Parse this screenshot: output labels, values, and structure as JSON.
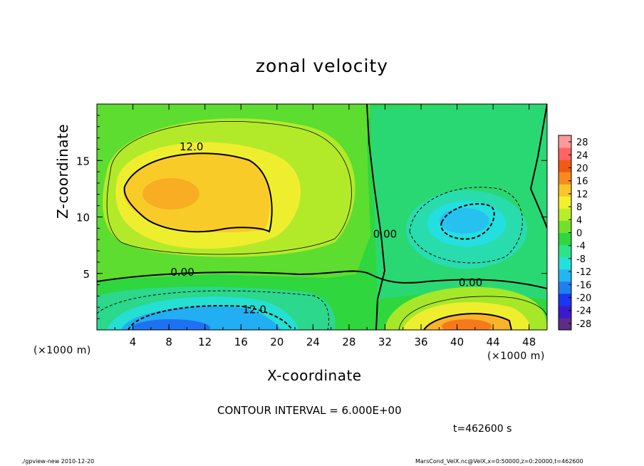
{
  "chart_data": {
    "type": "heatmap",
    "title": "zonal velocity",
    "xlabel": "X-coordinate",
    "ylabel": "Z-coordinate",
    "x_unit": "(×1000 m)",
    "y_unit": "(×1000 m)",
    "xlim": [
      0,
      50
    ],
    "ylim": [
      0,
      20
    ],
    "x_ticks": [
      4,
      8,
      12,
      16,
      20,
      24,
      28,
      32,
      36,
      40,
      44,
      48
    ],
    "y_ticks": [
      5,
      10,
      15
    ],
    "colorbar": {
      "labels": [
        28,
        24,
        20,
        16,
        12,
        8,
        4,
        0,
        -4,
        -8,
        -12,
        -16,
        -20,
        -24,
        -28
      ],
      "range": [
        -30,
        30
      ],
      "colors": [
        "#5a2e86",
        "#3a1ad0",
        "#1a36f0",
        "#1f7ff2",
        "#22b7f3",
        "#24e1dc",
        "#2be487",
        "#2fd63e",
        "#73e02a",
        "#b7ee2a",
        "#f3f02e",
        "#f9c528",
        "#f88a1c",
        "#f25a12",
        "#ff6464",
        "#ff9a9a"
      ]
    },
    "contour_labels": [
      {
        "text": "12.0",
        "x": 10.5,
        "z": 16.2
      },
      {
        "text": "0.00",
        "x": 9.5,
        "z": 5.1
      },
      {
        "text": "12.0",
        "x": 17.5,
        "z": 1.8
      },
      {
        "text": "0.00",
        "x": 41.5,
        "z": 4.2
      },
      {
        "text": "0.00",
        "x": 32.0,
        "z": 8.5
      }
    ],
    "features": [
      {
        "name": "positive jet",
        "x_center": 10,
        "z_center": 12,
        "peak": 14
      },
      {
        "name": "negative core",
        "x_center": 40,
        "z_center": 9.5,
        "peak": -11
      },
      {
        "name": "surface negative",
        "x_center": 10,
        "z_center": 0.5,
        "peak": -18
      },
      {
        "name": "surface positive",
        "x_center": 41,
        "z_center": 0.5,
        "peak": 19
      }
    ],
    "contour_interval": "CONTOUR INTERVAL = 6.000E+00",
    "time": "t=462600 s"
  },
  "footer": {
    "left": "./gpview-new  2010-12-20",
    "right": "MarsCond_VelX.nc@VelX,x=0:50000,z=0:20000,t=462600"
  }
}
